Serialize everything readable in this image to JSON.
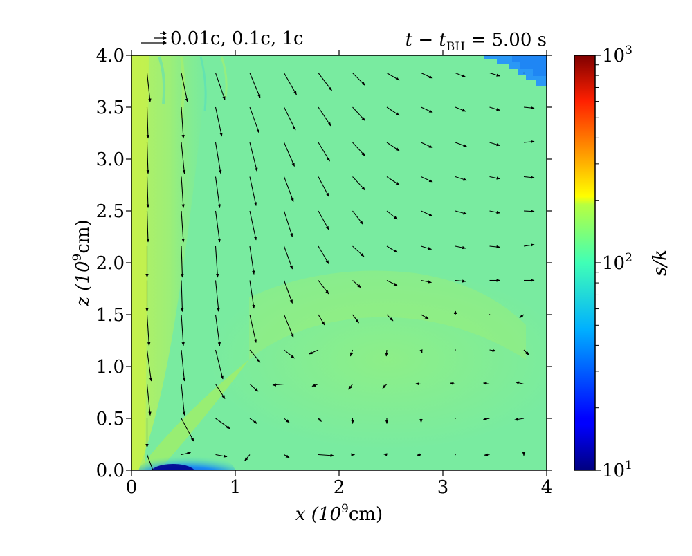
{
  "chart_data": {
    "type": "heatmap",
    "title_right": "t − t",
    "title_right_sub": "BH",
    "title_right_tail": " = 5.00 s",
    "vector_key": "0.01c, 0.1c, 1c",
    "xlabel": "x (10",
    "xlabel_sup": "9",
    "xlabel_tail": "cm)",
    "ylabel": "z (10",
    "ylabel_sup": "9",
    "ylabel_tail": "cm)",
    "xlim": [
      0,
      4
    ],
    "ylim": [
      0,
      4
    ],
    "x_ticks": [
      "0",
      "1",
      "2",
      "3",
      "4"
    ],
    "y_ticks": [
      "0.0",
      "0.5",
      "1.0",
      "1.5",
      "2.0",
      "2.5",
      "3.0",
      "3.5",
      "4.0"
    ],
    "colorbar": {
      "label": "s/k",
      "scale": "log",
      "range": [
        10,
        1000
      ],
      "tick_base": "10",
      "ticks": [
        {
          "exp": "1",
          "value": 10
        },
        {
          "exp": "2",
          "value": 100
        },
        {
          "exp": "3",
          "value": 1000
        }
      ],
      "colormap": "jet"
    },
    "background_value": 70,
    "features": [
      {
        "kind": "high-entropy jet",
        "value": 140
      },
      {
        "kind": "low-entropy disk",
        "value": 12
      },
      {
        "kind": "low-entropy corner",
        "value": 30
      }
    ],
    "arrow_grid_x": [
      0.15,
      0.48,
      0.81,
      1.14,
      1.47,
      1.8,
      2.13,
      2.46,
      2.79,
      3.12,
      3.45,
      3.78
    ],
    "arrow_grid_z": [
      0.15,
      0.5,
      0.83,
      1.16,
      1.5,
      1.83,
      2.16,
      2.5,
      2.83,
      3.16,
      3.5,
      3.83
    ],
    "arrows": [
      [
        [
          0.09,
          0.24
        ],
        [
          0.09,
          -0.02
        ],
        [
          0.11,
          0.02
        ],
        [
          -0.05,
          0.06
        ],
        [
          0.05,
          0.03
        ],
        [
          0.15,
          0.01
        ],
        [
          0.02,
          0
        ],
        [
          -0.03,
          -0.005
        ],
        [
          -0.04,
          0.005
        ],
        [
          0,
          0
        ],
        [
          -0.05,
          0.005
        ],
        [
          0,
          0.01
        ]
      ],
      [
        [
          0,
          0.28
        ],
        [
          0.12,
          0.22
        ],
        [
          0.14,
          0.1
        ],
        [
          0.07,
          0.05
        ],
        [
          0.05,
          0.04
        ],
        [
          0.03,
          0.03
        ],
        [
          0,
          0.05
        ],
        [
          0,
          0.05
        ],
        [
          0,
          0.04
        ],
        [
          0.005,
          0
        ],
        [
          -0.06,
          0.01
        ],
        [
          -0.09,
          0.015
        ]
      ],
      [
        [
          0.03,
          0.3
        ],
        [
          0.03,
          0.3
        ],
        [
          0.09,
          0.14
        ],
        [
          0.08,
          0.07
        ],
        [
          -0.11,
          0.01
        ],
        [
          -0.06,
          0.02
        ],
        [
          -0.04,
          0.05
        ],
        [
          -0.04,
          0.04
        ],
        [
          -0.05,
          -0.005
        ],
        [
          -0.05,
          -0.01
        ],
        [
          -0.06,
          -0.01
        ],
        [
          -0.08,
          -0.02
        ]
      ],
      [
        [
          0.04,
          0.3
        ],
        [
          0.03,
          0.3
        ],
        [
          0.07,
          0.28
        ],
        [
          0.1,
          0.12
        ],
        [
          0.1,
          0.08
        ],
        [
          -0.09,
          0.04
        ],
        [
          -0.02,
          0.06
        ],
        [
          -0.005,
          0.06
        ],
        [
          0.01,
          0.03
        ],
        [
          -0.005,
          0
        ],
        [
          0.06,
          0.01
        ],
        [
          0.05,
          0.05
        ]
      ],
      [
        [
          0.02,
          0.3
        ],
        [
          0.02,
          0.3
        ],
        [
          0.04,
          0.3
        ],
        [
          0.06,
          0.27
        ],
        [
          0.09,
          0.22
        ],
        [
          0.06,
          0.1
        ],
        [
          0.06,
          0.08
        ],
        [
          0.06,
          0.06
        ],
        [
          0.07,
          0.04
        ],
        [
          0,
          -0.04
        ],
        [
          0,
          0
        ],
        [
          -0.04,
          0.03
        ]
      ],
      [
        [
          0,
          0.3
        ],
        [
          0.01,
          0.3
        ],
        [
          0.03,
          0.3
        ],
        [
          0.04,
          0.27
        ],
        [
          0.08,
          0.22
        ],
        [
          0.1,
          0.13
        ],
        [
          0.08,
          0.07
        ],
        [
          0.1,
          0.05
        ],
        [
          0.1,
          0.02
        ],
        [
          0.1,
          0.01
        ],
        [
          0.1,
          0
        ],
        [
          0.1,
          0
        ]
      ],
      [
        [
          0,
          0.3
        ],
        [
          0.01,
          0.3
        ],
        [
          0.02,
          0.3
        ],
        [
          0.04,
          0.27
        ],
        [
          0.08,
          0.22
        ],
        [
          0.1,
          0.17
        ],
        [
          0.11,
          0.1
        ],
        [
          0.1,
          0.06
        ],
        [
          0.1,
          0.03
        ],
        [
          0.1,
          0.02
        ],
        [
          0.1,
          0.01
        ],
        [
          0.1,
          -0.015
        ]
      ],
      [
        [
          0.01,
          0.3
        ],
        [
          0.02,
          0.3
        ],
        [
          0.04,
          0.3
        ],
        [
          0.06,
          0.28
        ],
        [
          0.08,
          0.25
        ],
        [
          0.1,
          0.18
        ],
        [
          0.1,
          0.13
        ],
        [
          0.1,
          0.08
        ],
        [
          0.11,
          0.05
        ],
        [
          0.11,
          0.03
        ],
        [
          0.1,
          0.02
        ],
        [
          0.1,
          0.005
        ]
      ],
      [
        [
          0.01,
          0.3
        ],
        [
          0.02,
          0.3
        ],
        [
          0.04,
          0.3
        ],
        [
          0.06,
          0.28
        ],
        [
          0.09,
          0.24
        ],
        [
          0.1,
          0.19
        ],
        [
          0.12,
          0.13
        ],
        [
          0.12,
          0.08
        ],
        [
          0.11,
          0.05
        ],
        [
          0.11,
          0.035
        ],
        [
          0.1,
          0.02
        ],
        [
          0.1,
          0.01
        ]
      ],
      [
        [
          0.01,
          0.3
        ],
        [
          0.03,
          0.3
        ],
        [
          0.05,
          0.3
        ],
        [
          0.07,
          0.28
        ],
        [
          0.1,
          0.23
        ],
        [
          0.11,
          0.18
        ],
        [
          0.12,
          0.13
        ],
        [
          0.12,
          0.08
        ],
        [
          0.11,
          0.05
        ],
        [
          0.11,
          0.04
        ],
        [
          0.1,
          0.03
        ],
        [
          0.1,
          -0.01
        ]
      ],
      [
        [
          0.01,
          0.3
        ],
        [
          0.02,
          0.3
        ],
        [
          0.06,
          0.28
        ],
        [
          0.09,
          0.25
        ],
        [
          0.11,
          0.22
        ],
        [
          0.12,
          0.18
        ],
        [
          0.12,
          0.13
        ],
        [
          0.12,
          0.08
        ],
        [
          0.11,
          0.05
        ],
        [
          0.1,
          0.04
        ],
        [
          0.1,
          0.03
        ],
        [
          0.1,
          0.01
        ]
      ],
      [
        [
          0.03,
          0.28
        ],
        [
          0.06,
          0.28
        ],
        [
          0.09,
          0.26
        ],
        [
          0.1,
          0.24
        ],
        [
          0.12,
          0.21
        ],
        [
          0.13,
          0.17
        ],
        [
          0.12,
          0.12
        ],
        [
          0.12,
          0.07
        ],
        [
          0.11,
          0.05
        ],
        [
          0.1,
          0.04
        ],
        [
          0.1,
          0.03
        ],
        [
          0,
          0
        ]
      ]
    ]
  }
}
